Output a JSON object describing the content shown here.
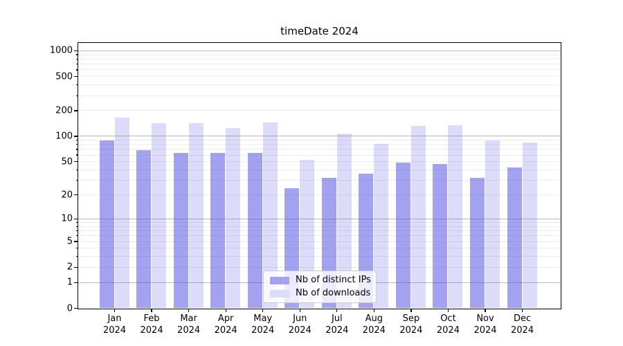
{
  "window": {
    "background": "#ffffff"
  },
  "chart_data": {
    "type": "bar",
    "title": "timeDate 2024",
    "categories": [
      "Jan",
      "Feb",
      "Mar",
      "Apr",
      "May",
      "Jun",
      "Jul",
      "Aug",
      "Sep",
      "Oct",
      "Nov",
      "Dec"
    ],
    "x_tick_year": "2024",
    "series": [
      {
        "name": "Nb of distinct IPs",
        "color": "#a2a2f0",
        "values": [
          88,
          68,
          63,
          63,
          63,
          24,
          32,
          36,
          48,
          47,
          32,
          42
        ]
      },
      {
        "name": "Nb of downloads",
        "color": "#dcdcfa",
        "values": [
          165,
          141,
          141,
          123,
          143,
          52,
          107,
          80,
          130,
          134,
          89,
          83
        ]
      }
    ],
    "yaxis": {
      "scale": "log1p",
      "tick_values": [
        0,
        1,
        2,
        5,
        10,
        20,
        50,
        100,
        200,
        500,
        1000
      ],
      "tick_labels": [
        "0",
        "1",
        "2",
        "5",
        "10",
        "20",
        "50",
        "100",
        "200",
        "500",
        "1000"
      ],
      "ylim": [
        0,
        1250
      ]
    },
    "grid": true,
    "legend": {
      "position": "lower center"
    },
    "colors": {
      "spine": "#000000",
      "major_grid": "#bdbdbd",
      "minor_grid": "#ececec"
    }
  }
}
